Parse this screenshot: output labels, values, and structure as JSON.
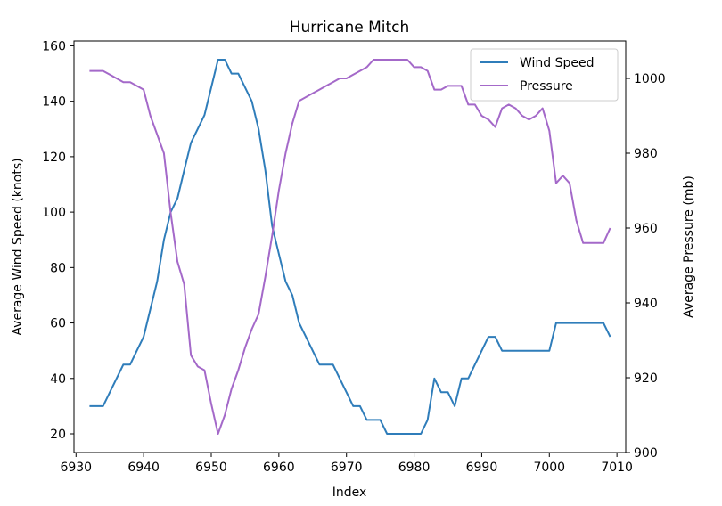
{
  "chart_data": {
    "type": "line",
    "title": "Hurricane Mitch",
    "xlabel": "Index",
    "ylabel": "Average Wind Speed (knots)",
    "y2label": "Average Pressure (mb)",
    "xlim": [
      6929.7,
      7011.3
    ],
    "ylim": [
      13.25,
      161.75
    ],
    "y2lim": [
      900,
      1010
    ],
    "xticks": [
      6930,
      6940,
      6950,
      6960,
      6970,
      6980,
      6990,
      7000,
      7010
    ],
    "yticks": [
      20,
      40,
      60,
      80,
      100,
      120,
      140,
      160
    ],
    "y2ticks": [
      900,
      920,
      940,
      960,
      980,
      1000
    ],
    "grid": false,
    "legend_position": "upper-right",
    "x": [
      6932,
      6933,
      6934,
      6935,
      6936,
      6937,
      6938,
      6939,
      6940,
      6941,
      6942,
      6943,
      6944,
      6945,
      6946,
      6947,
      6948,
      6949,
      6950,
      6951,
      6952,
      6953,
      6954,
      6955,
      6956,
      6957,
      6958,
      6959,
      6960,
      6961,
      6962,
      6963,
      6964,
      6965,
      6966,
      6967,
      6968,
      6969,
      6970,
      6971,
      6972,
      6973,
      6974,
      6975,
      6976,
      6977,
      6978,
      6979,
      6980,
      6981,
      6982,
      6983,
      6984,
      6985,
      6986,
      6987,
      6988,
      6989,
      6990,
      6991,
      6992,
      6993,
      6994,
      6995,
      6996,
      6997,
      6998,
      6999,
      7000,
      7001,
      7002,
      7003,
      7004,
      7005,
      7006,
      7007,
      7008,
      7009
    ],
    "series": [
      {
        "name": "Wind Speed",
        "color": "#2f7dba",
        "axis": "left",
        "values": [
          30,
          30,
          30,
          35,
          40,
          45,
          45,
          50,
          55,
          65,
          75,
          90,
          100,
          105,
          115,
          125,
          130,
          135,
          145,
          155,
          155,
          150,
          150,
          145,
          140,
          130,
          115,
          95,
          85,
          75,
          70,
          60,
          55,
          50,
          45,
          45,
          45,
          40,
          35,
          30,
          30,
          25,
          25,
          25,
          20,
          20,
          20,
          20,
          20,
          20,
          25,
          40,
          35,
          35,
          30,
          40,
          40,
          45,
          50,
          55,
          55,
          50,
          50,
          50,
          50,
          50,
          50,
          50,
          50,
          60,
          60,
          60,
          60,
          60,
          60,
          60,
          60,
          55
        ]
      },
      {
        "name": "Pressure",
        "color": "#a469c9",
        "axis": "right",
        "values": [
          1002,
          1002,
          1002,
          1001,
          1000,
          999,
          999,
          998,
          997,
          990,
          985,
          980,
          964,
          951,
          945,
          926,
          923,
          922,
          913,
          905,
          910,
          917,
          922,
          928,
          933,
          937,
          947,
          958,
          970,
          980,
          988,
          994,
          995,
          996,
          997,
          998,
          999,
          1000,
          1000,
          1001,
          1002,
          1003,
          1005,
          1005,
          1005,
          1005,
          1005,
          1005,
          1003,
          1003,
          1002,
          997,
          997,
          998,
          998,
          998,
          993,
          993,
          990,
          989,
          987,
          992,
          993,
          992,
          990,
          989,
          990,
          992,
          986,
          972,
          974,
          972,
          962,
          956,
          956,
          956,
          956,
          960
        ]
      }
    ]
  }
}
